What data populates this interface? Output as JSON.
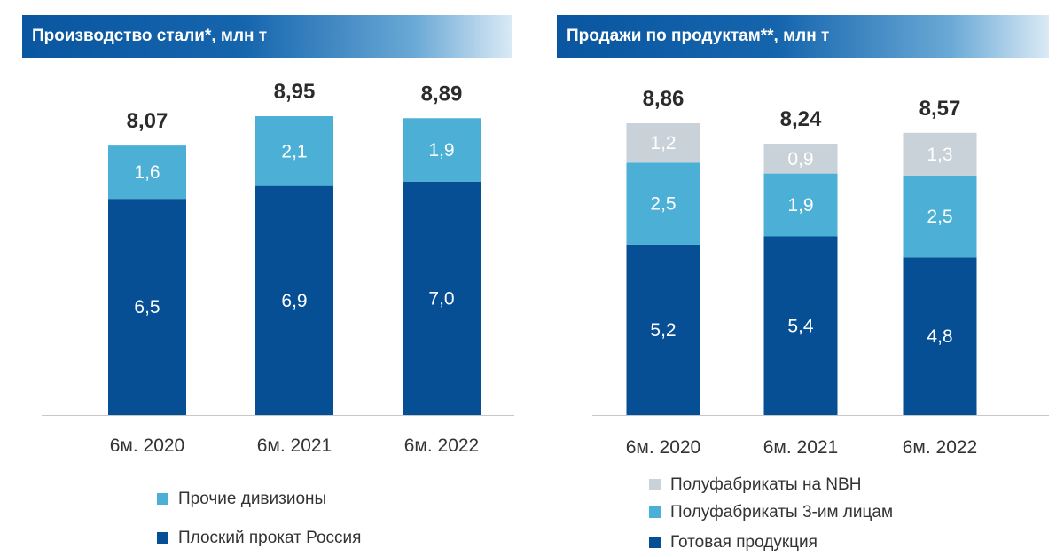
{
  "colors": {
    "flat_dark": "#064f95",
    "mid_blue": "#4bafd6",
    "light_grey": "#c9d1d9",
    "axis": "#c8c8c8",
    "total_text": "#2b2b2b",
    "tick_text": "#333333",
    "inbar_text": "#ffffff",
    "inbar_grey_text": "#ffffff"
  },
  "chart_data": [
    {
      "type": "bar",
      "stacked": true,
      "title": "Производство стали*, млн т",
      "categories": [
        "6м. 2020",
        "6м. 2021",
        "6м. 2022"
      ],
      "totals": [
        "8,07",
        "8,95",
        "8,89"
      ],
      "total_values": [
        8.07,
        8.95,
        8.89
      ],
      "ylim": [
        0,
        8.95
      ],
      "grid": false,
      "legend_position": "bottom",
      "series": [
        {
          "name": "Плоский прокат Россия",
          "color_key": "flat_dark",
          "values": [
            6.5,
            6.9,
            7.0
          ],
          "labels": [
            "6,5",
            "6,9",
            "7,0"
          ]
        },
        {
          "name": "Прочие дивизионы",
          "color_key": "mid_blue",
          "values": [
            1.6,
            2.1,
            1.9
          ],
          "labels": [
            "1,6",
            "2,1",
            "1,9"
          ]
        }
      ],
      "legend_order": [
        "Прочие дивизионы",
        "Плоский прокат Россия"
      ]
    },
    {
      "type": "bar",
      "stacked": true,
      "title": "Продажи по продуктам**, млн т",
      "categories": [
        "6м. 2020",
        "6м. 2021",
        "6м. 2022"
      ],
      "totals": [
        "8,86",
        "8,24",
        "8,57"
      ],
      "total_values": [
        8.86,
        8.24,
        8.57
      ],
      "ylim": [
        0,
        8.86
      ],
      "grid": false,
      "legend_position": "bottom",
      "series": [
        {
          "name": "Готовая продукция",
          "color_key": "flat_dark",
          "values": [
            5.2,
            5.4,
            4.8
          ],
          "labels": [
            "5,2",
            "5,4",
            "4,8"
          ]
        },
        {
          "name": "Полуфабрикаты 3-им лицам",
          "color_key": "mid_blue",
          "values": [
            2.5,
            1.9,
            2.5
          ],
          "labels": [
            "2,5",
            "1,9",
            "2,5"
          ]
        },
        {
          "name": "Полуфабрикаты на NBH",
          "color_key": "light_grey",
          "values": [
            1.2,
            0.9,
            1.3
          ],
          "labels": [
            "1,2",
            "0,9",
            "1,3"
          ]
        }
      ],
      "legend_order": [
        "Полуфабрикаты на NBH",
        "Полуфабрикаты 3-им лицам",
        "Готовая продукция"
      ]
    }
  ]
}
